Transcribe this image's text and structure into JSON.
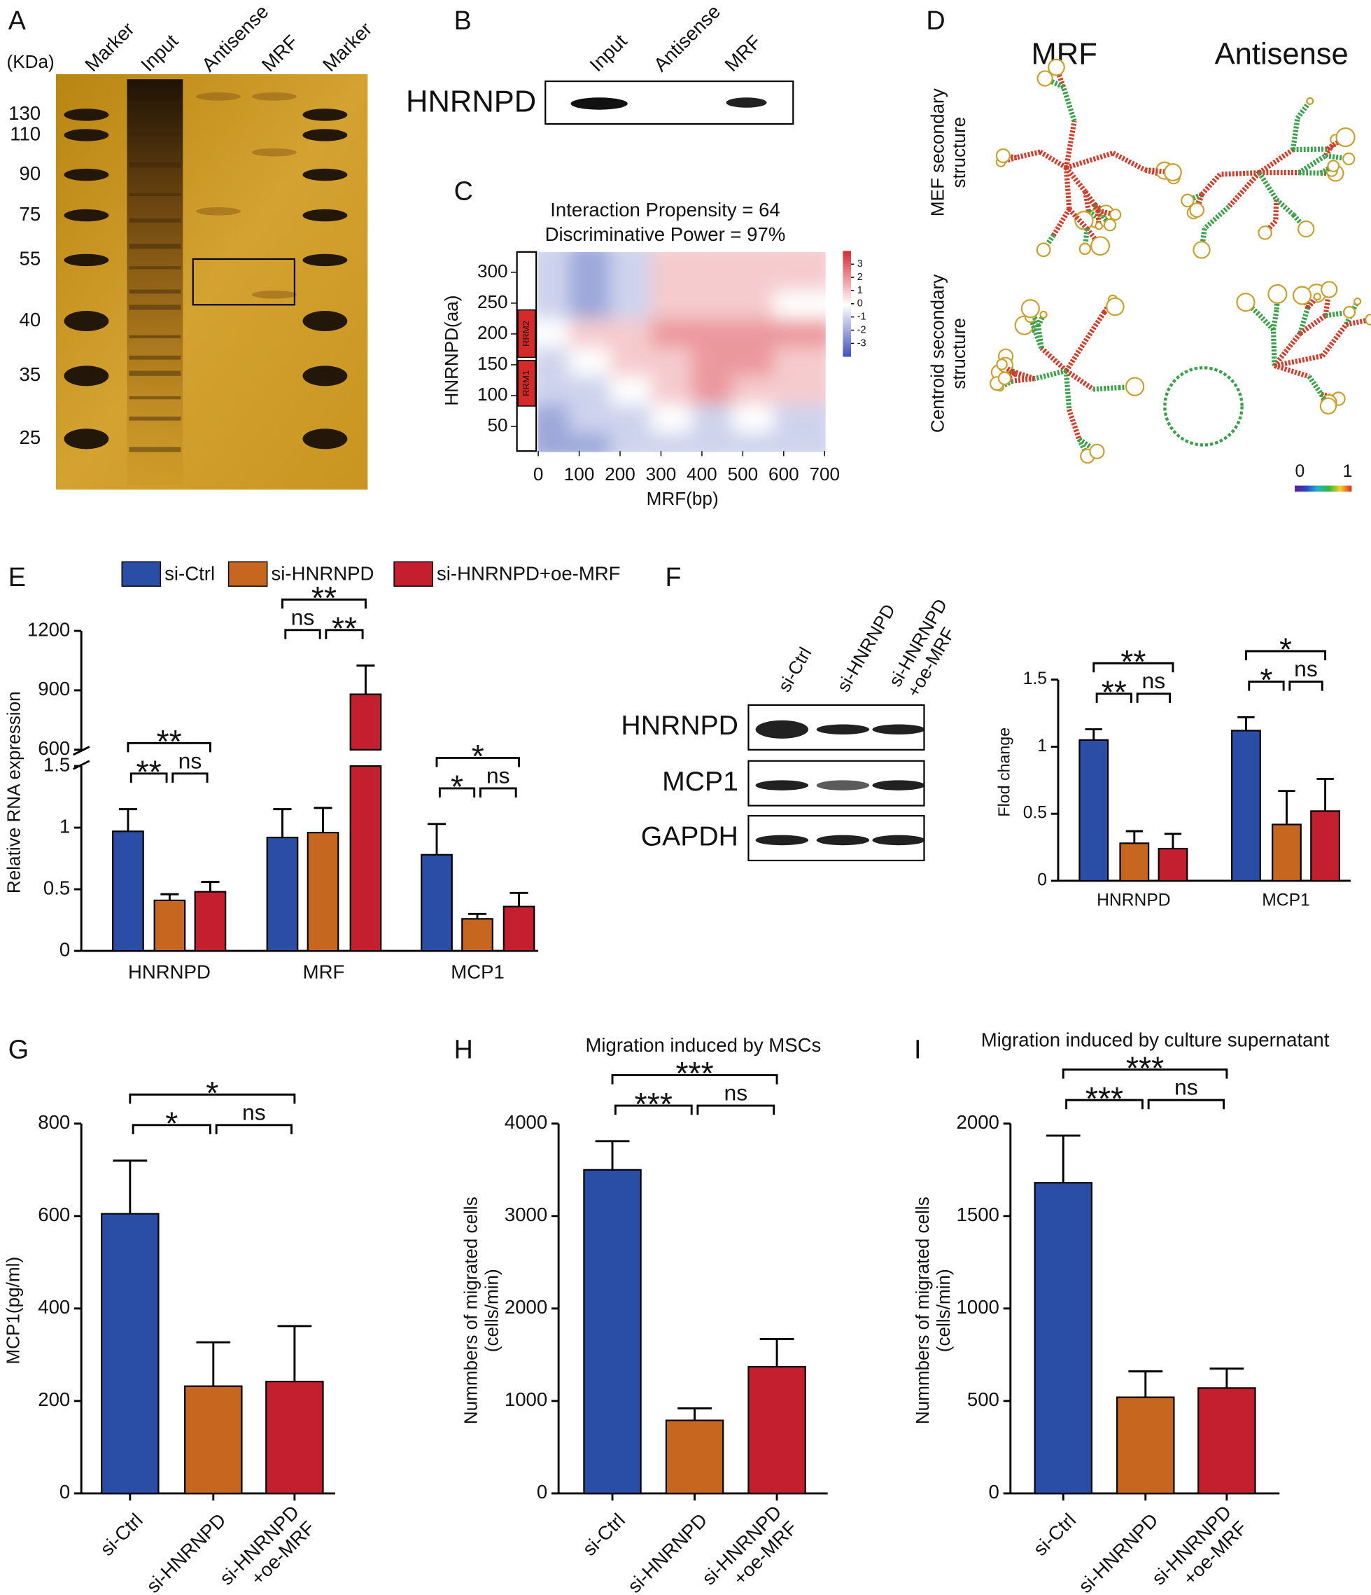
{
  "panel_labels": [
    "A",
    "B",
    "C",
    "D",
    "E",
    "F",
    "G",
    "H",
    "I"
  ],
  "gel": {
    "unit": "(KDa)",
    "lanes": [
      "Marker",
      "Input",
      "Antisense",
      "MRF",
      "Marker"
    ],
    "markers": [
      130,
      110,
      90,
      75,
      55,
      40,
      35,
      25
    ]
  },
  "blot_b": {
    "protein": "HNRNPD",
    "lanes": [
      "Input",
      "Antisense",
      "MRF"
    ]
  },
  "structures": {
    "columns": [
      "MRF",
      "Antisense"
    ],
    "rows": [
      "MEF secondary\nstructure",
      "Centroid secondary\nstructure"
    ],
    "colorbar": [
      0,
      1
    ]
  },
  "blot_f": {
    "lanes": [
      "si-Ctrl",
      "si-HNRNPD",
      "si-HNRNPD\n+oe-MRF"
    ],
    "rows": [
      "HNRNPD",
      "MCP1",
      "GAPDH"
    ]
  },
  "chart_data": [
    {
      "type": "heatmap",
      "title": "Interaction Propensity = 64",
      "subtitle": "Discriminative Power = 97%",
      "x_label": "MRF(bp)",
      "y_label": "HNRNPD(aa)",
      "xlim": [
        0,
        700
      ],
      "ylim": [
        10,
        333
      ],
      "xticks": [
        0,
        100,
        200,
        300,
        400,
        500,
        600,
        700
      ],
      "yticks": [
        50,
        100,
        150,
        200,
        250,
        300
      ],
      "z": [
        [
          -2,
          -2,
          -1,
          -1,
          -1,
          -1,
          -1
        ],
        [
          -2,
          -1,
          -1,
          0,
          -1,
          0,
          -1
        ],
        [
          -1,
          -1,
          0,
          1,
          2,
          1,
          1
        ],
        [
          -1,
          0,
          1,
          1,
          2,
          2,
          1
        ],
        [
          0,
          1,
          1,
          2,
          2,
          2,
          2
        ],
        [
          -1,
          -2,
          -1,
          1,
          1,
          1,
          0
        ],
        [
          -1,
          -2,
          -1,
          1,
          1,
          1,
          1
        ]
      ],
      "clim": [
        -4,
        4
      ],
      "colorbar_ticks": [
        3,
        2,
        1,
        0,
        -1,
        -2,
        -3
      ],
      "domains": [
        {
          "label": "RRM1",
          "start": 83,
          "end": 157
        },
        {
          "label": "RRM2",
          "start": 162,
          "end": 239
        }
      ]
    },
    {
      "type": "bar",
      "y_label": "Relative RNA expression",
      "categories": [
        "HNRNPD",
        "MRF",
        "MCP1"
      ],
      "series": [
        {
          "name": "si-Ctrl",
          "color": "#2a4ea6",
          "values": [
            0.97,
            0.92,
            0.78
          ],
          "errors": [
            0.18,
            0.23,
            0.25
          ]
        },
        {
          "name": "si-HNRNPD",
          "color": "#c6661f",
          "values": [
            0.41,
            0.96,
            0.26
          ],
          "errors": [
            0.05,
            0.2,
            0.04
          ]
        },
        {
          "name": "si-HNRNPD+oe-MRF",
          "color": "#c41f2e",
          "values": [
            0.48,
            880,
            0.36
          ],
          "errors": [
            0.08,
            145,
            0.11
          ]
        }
      ],
      "ylim": [
        0,
        1200
      ],
      "ybreak": [
        1.5,
        600
      ],
      "yticks": [
        0,
        0.5,
        1,
        1.5,
        600,
        900,
        1200
      ],
      "comparisons": [
        {
          "category": 0,
          "from": 0,
          "to": 2,
          "label": "**"
        },
        {
          "category": 0,
          "from": 0,
          "to": 1,
          "label": "**"
        },
        {
          "category": 0,
          "from": 1,
          "to": 2,
          "label": "ns"
        },
        {
          "category": 1,
          "from": 0,
          "to": 2,
          "label": "**"
        },
        {
          "category": 1,
          "from": 0,
          "to": 1,
          "label": "ns"
        },
        {
          "category": 1,
          "from": 1,
          "to": 2,
          "label": "**"
        },
        {
          "category": 2,
          "from": 0,
          "to": 2,
          "label": "*"
        },
        {
          "category": 2,
          "from": 0,
          "to": 1,
          "label": "*"
        },
        {
          "category": 2,
          "from": 1,
          "to": 2,
          "label": "ns"
        }
      ]
    },
    {
      "type": "bar",
      "y_label": "Flod change",
      "categories": [
        "HNRNPD",
        "MCP1"
      ],
      "series": [
        {
          "color": "#2a4ea6",
          "values": [
            1.05,
            1.12
          ],
          "errors": [
            0.08,
            0.1
          ]
        },
        {
          "color": "#c6661f",
          "values": [
            0.28,
            0.42
          ],
          "errors": [
            0.09,
            0.25
          ]
        },
        {
          "color": "#c41f2e",
          "values": [
            0.24,
            0.52
          ],
          "errors": [
            0.11,
            0.24
          ]
        }
      ],
      "ylim": [
        0,
        1.5
      ],
      "yticks": [
        0,
        0.5,
        1,
        1.5
      ],
      "comparisons": [
        {
          "category": 0,
          "from": 0,
          "to": 2,
          "label": "**"
        },
        {
          "category": 0,
          "from": 0,
          "to": 1,
          "label": "**"
        },
        {
          "category": 0,
          "from": 1,
          "to": 2,
          "label": "ns"
        },
        {
          "category": 1,
          "from": 0,
          "to": 2,
          "label": "*"
        },
        {
          "category": 1,
          "from": 0,
          "to": 1,
          "label": "*"
        },
        {
          "category": 1,
          "from": 1,
          "to": 2,
          "label": "ns"
        }
      ]
    },
    {
      "type": "bar",
      "y_label": "MCP1(pg/ml)",
      "categories": [
        "si-Ctrl",
        "si-HNRNPD",
        "si-HNRNPD\n+oe-MRF"
      ],
      "colors": [
        "#2a4ea6",
        "#c6661f",
        "#c41f2e"
      ],
      "values": [
        605,
        232,
        242
      ],
      "errors": [
        115,
        95,
        120
      ],
      "ylim": [
        0,
        800
      ],
      "yticks": [
        0,
        200,
        400,
        600,
        800
      ],
      "comparisons": [
        {
          "from": 0,
          "to": 2,
          "label": "*"
        },
        {
          "from": 0,
          "to": 1,
          "label": "*"
        },
        {
          "from": 1,
          "to": 2,
          "label": "ns"
        }
      ]
    },
    {
      "type": "bar",
      "title": "Migration induced by MSCs",
      "y_label": "Nummbers of migrated cells\n(cells/min)",
      "categories": [
        "si-Ctrl",
        "si-HNRNPD",
        "si-HNRNPD\n+oe-MRF"
      ],
      "colors": [
        "#2a4ea6",
        "#c6661f",
        "#c41f2e"
      ],
      "values": [
        3500,
        790,
        1370
      ],
      "errors": [
        310,
        130,
        300
      ],
      "ylim": [
        0,
        4000
      ],
      "yticks": [
        0,
        1000,
        2000,
        3000,
        4000
      ],
      "comparisons": [
        {
          "from": 0,
          "to": 2,
          "label": "***"
        },
        {
          "from": 0,
          "to": 1,
          "label": "***"
        },
        {
          "from": 1,
          "to": 2,
          "label": "ns"
        }
      ]
    },
    {
      "type": "bar",
      "title": "Migration induced by culture supernatant",
      "y_label": "Nummbers of migrated cells\n(cells/min)",
      "categories": [
        "si-Ctrl",
        "si-HNRNPD",
        "si-HNRNPD\n+oe-MRF"
      ],
      "colors": [
        "#2a4ea6",
        "#c6661f",
        "#c41f2e"
      ],
      "values": [
        1680,
        520,
        570
      ],
      "errors": [
        255,
        140,
        105
      ],
      "ylim": [
        0,
        2000
      ],
      "yticks": [
        0,
        500,
        1000,
        1500,
        2000
      ],
      "comparisons": [
        {
          "from": 0,
          "to": 2,
          "label": "***"
        },
        {
          "from": 0,
          "to": 1,
          "label": "***"
        },
        {
          "from": 1,
          "to": 2,
          "label": "ns"
        }
      ]
    }
  ]
}
